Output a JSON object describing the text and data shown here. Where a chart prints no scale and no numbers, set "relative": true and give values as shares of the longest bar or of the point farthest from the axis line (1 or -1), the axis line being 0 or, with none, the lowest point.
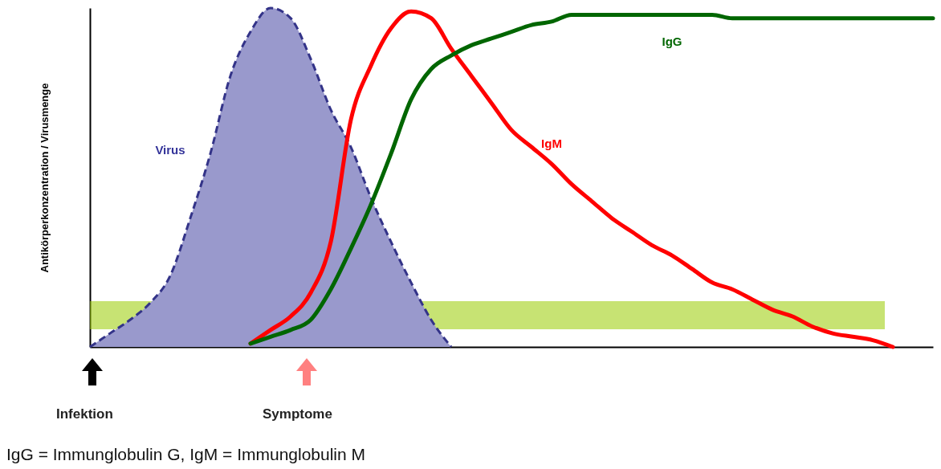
{
  "chart_data": {
    "type": "line",
    "relative": true,
    "ylabel": "Antikörperkonzentration / Virusmenge",
    "categories": [
      null,
      null,
      null,
      null,
      null,
      null,
      null,
      null,
      null,
      null,
      null,
      null,
      null,
      null,
      null,
      null,
      null,
      null,
      null,
      null,
      null,
      null,
      null,
      null,
      null,
      null,
      null,
      null,
      null,
      null,
      null,
      null,
      null,
      null,
      null,
      null,
      null,
      null,
      null,
      null,
      null,
      null,
      null
    ],
    "series": [
      {
        "name": "Virus",
        "type": "area",
        "color": "#9999cc",
        "line_style": "dashed",
        "values": [
          0,
          0.04,
          0.08,
          0.13,
          0.21,
          0.38,
          0.57,
          0.8,
          0.93,
          1.0,
          0.97,
          0.85,
          0.7,
          0.59,
          0.44,
          0.31,
          0.19,
          0.08,
          0,
          null,
          null,
          null,
          null,
          null,
          null,
          null,
          null,
          null,
          null,
          null,
          null,
          null,
          null,
          null,
          null,
          null,
          null,
          null,
          null,
          null,
          null,
          null,
          null
        ]
      },
      {
        "name": "IgM",
        "type": "line",
        "color": "#ff0000",
        "values": [
          null,
          null,
          null,
          null,
          null,
          null,
          null,
          null,
          0.01,
          0.05,
          0.09,
          0.16,
          0.31,
          0.67,
          0.83,
          0.94,
          0.99,
          0.97,
          0.88,
          0.8,
          0.72,
          0.64,
          0.59,
          0.54,
          0.48,
          0.43,
          0.38,
          0.34,
          0.3,
          0.27,
          0.23,
          0.19,
          0.17,
          0.14,
          0.11,
          0.09,
          0.06,
          0.04,
          0.03,
          0.02,
          0,
          null,
          null
        ]
      },
      {
        "name": "IgG",
        "type": "line",
        "color": "#006600",
        "values": [
          null,
          null,
          null,
          null,
          null,
          null,
          null,
          null,
          0.01,
          0.03,
          0.05,
          0.08,
          0.17,
          0.29,
          0.42,
          0.57,
          0.73,
          0.82,
          0.86,
          0.89,
          0.91,
          0.93,
          0.95,
          0.96,
          0.98,
          0.98,
          0.98,
          0.98,
          0.98,
          0.98,
          0.98,
          0.98,
          0.97,
          0.97,
          0.97,
          0.97,
          0.97,
          0.97,
          0.97,
          0.97,
          0.97,
          0.97,
          0.97
        ]
      }
    ],
    "bands": [
      {
        "axis": "y",
        "from": 0.052,
        "to": 0.135,
        "color": "#99cc00"
      }
    ],
    "annotations": [
      "Infektion",
      "Symptome",
      "IgG = Immunglobulin G, IgM = Immunglobulin M"
    ]
  }
}
